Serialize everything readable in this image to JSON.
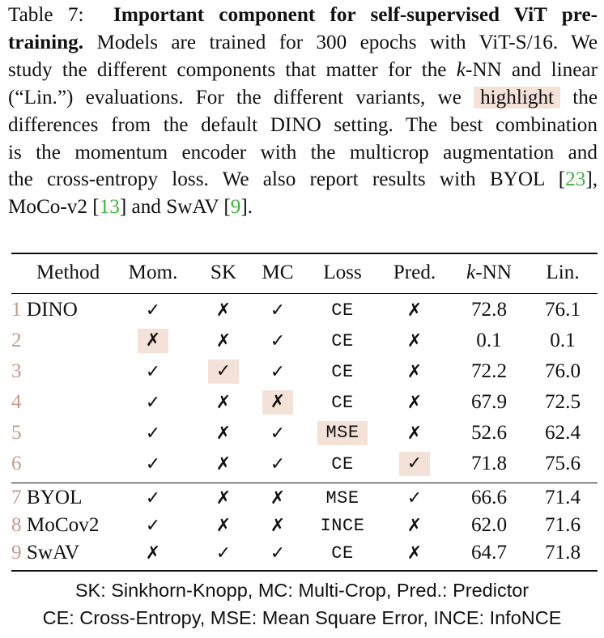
{
  "caption": {
    "label": "Table 7:",
    "bold_title_1": "Important component for self-supervised ViT pre-",
    "bold_title_2": "training.",
    "line2_rest": "Models are trained for 300 epochs with ViT-S/16. We",
    "line3_a": "study the different components that matter for the ",
    "line3_k": "k",
    "line3_b": "-NN and linear",
    "line4_a": "(“Lin.”) evaluations. For the different variants, we",
    "line4_hl": "highlight",
    "line4_b": "the",
    "line5": "differences from the default DINO setting. The best combination",
    "line6": "is the momentum encoder with the multicrop augmentation and",
    "line7_a": "the cross-entropy loss. We also report results with BYOL [",
    "cite_byol": "23",
    "line7_b": "],",
    "line8_a": "MoCo-v2 [",
    "cite_moco": "13",
    "line8_b": "] and SwAV [",
    "cite_swav": "9",
    "line8_c": "]."
  },
  "table": {
    "headers": {
      "method": "Method",
      "mom": "Mom.",
      "sk": "SK",
      "mc": "MC",
      "loss": "Loss",
      "pred": "Pred.",
      "knn_k": "k",
      "knn_rest": "-NN",
      "lin": "Lin."
    },
    "rows_group1": [
      {
        "num": "1",
        "method": "DINO",
        "mom": "✓",
        "sk": "✗",
        "mc": "✓",
        "loss": "CE",
        "pred": "✗",
        "knn": "72.8",
        "lin": "76.1"
      },
      {
        "num": "2",
        "method": "",
        "mom": "✗",
        "sk": "✗",
        "mc": "✓",
        "loss": "CE",
        "pred": "✗",
        "knn": "0.1",
        "lin": "0.1"
      },
      {
        "num": "3",
        "method": "",
        "mom": "✓",
        "sk": "✓",
        "mc": "✓",
        "loss": "CE",
        "pred": "✗",
        "knn": "72.2",
        "lin": "76.0"
      },
      {
        "num": "4",
        "method": "",
        "mom": "✓",
        "sk": "✗",
        "mc": "✗",
        "loss": "CE",
        "pred": "✗",
        "knn": "67.9",
        "lin": "72.5"
      },
      {
        "num": "5",
        "method": "",
        "mom": "✓",
        "sk": "✗",
        "mc": "✓",
        "loss": "MSE",
        "pred": "✗",
        "knn": "52.6",
        "lin": "62.4"
      },
      {
        "num": "6",
        "method": "",
        "mom": "✓",
        "sk": "✗",
        "mc": "✓",
        "loss": "CE",
        "pred": "✓",
        "knn": "71.8",
        "lin": "75.6"
      }
    ],
    "rows_group2": [
      {
        "num": "7",
        "method": "BYOL",
        "mom": "✓",
        "sk": "✗",
        "mc": "✗",
        "loss": "MSE",
        "pred": "✓",
        "knn": "66.6",
        "lin": "71.4"
      },
      {
        "num": "8",
        "method": "MoCov2",
        "mom": "✓",
        "sk": "✗",
        "mc": "✗",
        "loss": "INCE",
        "pred": "✗",
        "knn": "62.0",
        "lin": "71.6"
      },
      {
        "num": "9",
        "method": "SwAV",
        "mom": "✗",
        "sk": "✓",
        "mc": "✓",
        "loss": "CE",
        "pred": "✗",
        "knn": "64.7",
        "lin": "71.8"
      }
    ]
  },
  "footnote": {
    "line1": "SK: Sinkhorn-Knopp, MC: Multi-Crop, Pred.: Predictor",
    "line2": "CE: Cross-Entropy, MSE: Mean Square Error, INCE: InfoNCE"
  },
  "colors": {
    "highlight": "#f4e1d8",
    "citation": "#3cb43c",
    "row_number": "#c79a88"
  }
}
